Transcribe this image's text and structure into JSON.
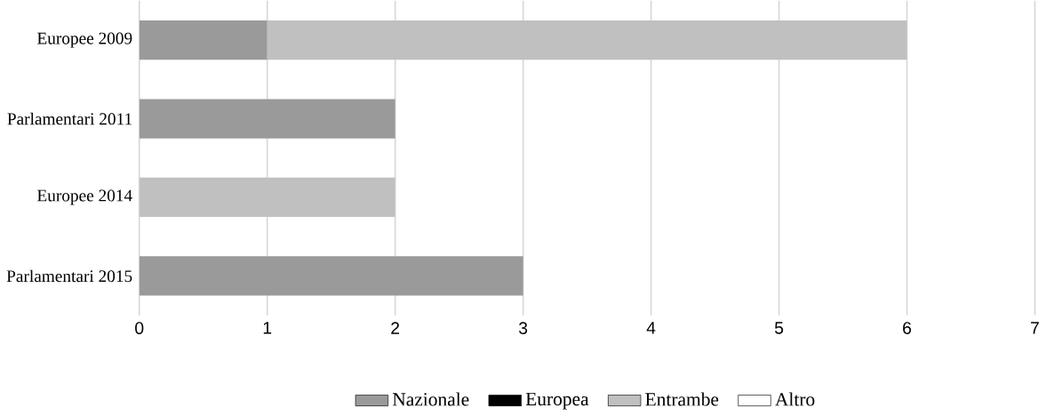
{
  "chart_data": {
    "type": "bar",
    "orientation": "horizontal",
    "stacked": true,
    "categories": [
      "Europee 2009",
      "Parlamentari 2011",
      "Europee 2014",
      "Parlamentari 2015"
    ],
    "series": [
      {
        "name": "Nazionale",
        "color": "#9a9a9a",
        "values": [
          1,
          2,
          null,
          3
        ]
      },
      {
        "name": "Europea",
        "color": "#000000",
        "values": [
          null,
          null,
          null,
          null
        ]
      },
      {
        "name": "Entrambe",
        "color": "#c0c0c0",
        "values": [
          5,
          null,
          2,
          null
        ]
      },
      {
        "name": "Altro",
        "color": "#ffffff",
        "values": [
          null,
          null,
          null,
          null
        ]
      }
    ],
    "xlim": [
      0,
      7
    ],
    "xticks": [
      0,
      1,
      2,
      3,
      4,
      5,
      6,
      7
    ],
    "grid": "x",
    "legend": "bottom"
  }
}
